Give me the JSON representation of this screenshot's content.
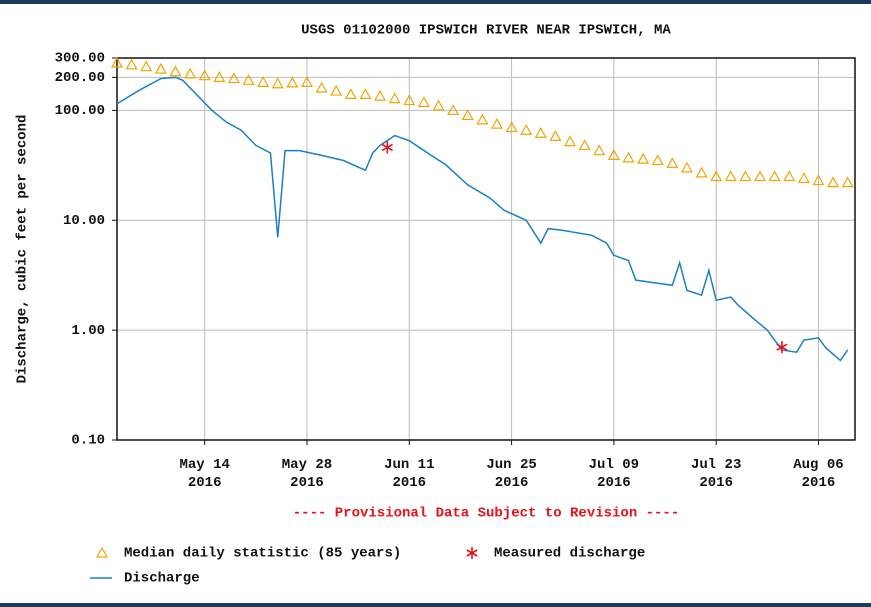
{
  "chart_data": {
    "type": "line",
    "title": "USGS 01102000 IPSWICH RIVER NEAR IPSWICH, MA",
    "ylabel": "Discharge, cubic feet per second",
    "annotation": "---- Provisional Data Subject to Revision ----",
    "log_y": true,
    "grid": true,
    "legend": "bottom",
    "xlim": [
      "2016-05-02",
      "2016-08-11"
    ],
    "xticks": [
      {
        "value": "2016-05-14",
        "label": "May 14 2016"
      },
      {
        "value": "2016-05-28",
        "label": "May 28 2016"
      },
      {
        "value": "2016-06-11",
        "label": "Jun 11 2016"
      },
      {
        "value": "2016-06-25",
        "label": "Jun 25 2016"
      },
      {
        "value": "2016-07-09",
        "label": "Jul 09 2016"
      },
      {
        "value": "2016-07-23",
        "label": "Jul 23 2016"
      },
      {
        "value": "2016-08-06",
        "label": "Aug 06 2016"
      }
    ],
    "ylim": [
      0.1,
      300
    ],
    "yticks": [
      {
        "value": 0.1,
        "label": "0.10"
      },
      {
        "value": 1,
        "label": "1.00"
      },
      {
        "value": 10,
        "label": "10.00"
      },
      {
        "value": 100,
        "label": "100.00"
      },
      {
        "value": 200,
        "label": "200.00"
      },
      {
        "value": 300,
        "label": "300.00"
      }
    ],
    "series": [
      {
        "name": "Median daily statistic (85 years)",
        "color": "#f5a300",
        "marker": "triangle",
        "x": [
          "2016-05-02",
          "2016-05-04",
          "2016-05-06",
          "2016-05-08",
          "2016-05-10",
          "2016-05-12",
          "2016-05-14",
          "2016-05-16",
          "2016-05-18",
          "2016-05-20",
          "2016-05-22",
          "2016-05-24",
          "2016-05-26",
          "2016-05-28",
          "2016-05-30",
          "2016-06-01",
          "2016-06-03",
          "2016-06-05",
          "2016-06-07",
          "2016-06-09",
          "2016-06-11",
          "2016-06-13",
          "2016-06-15",
          "2016-06-17",
          "2016-06-19",
          "2016-06-21",
          "2016-06-23",
          "2016-06-25",
          "2016-06-27",
          "2016-06-29",
          "2016-07-01",
          "2016-07-03",
          "2016-07-05",
          "2016-07-07",
          "2016-07-09",
          "2016-07-11",
          "2016-07-13",
          "2016-07-15",
          "2016-07-17",
          "2016-07-19",
          "2016-07-21",
          "2016-07-23",
          "2016-07-25",
          "2016-07-27",
          "2016-07-29",
          "2016-07-31",
          "2016-08-02",
          "2016-08-04",
          "2016-08-06",
          "2016-08-08",
          "2016-08-10"
        ],
        "values": [
          270,
          260,
          250,
          238,
          225,
          215,
          207,
          200,
          195,
          188,
          180,
          175,
          178,
          180,
          160,
          150,
          140,
          140,
          135,
          128,
          123,
          118,
          110,
          100,
          90,
          82,
          75,
          70,
          66,
          62,
          58,
          52,
          48,
          43,
          39,
          37,
          36,
          35,
          33,
          30,
          27,
          25,
          25,
          25,
          25,
          25,
          25,
          24,
          23,
          22,
          22
        ]
      },
      {
        "name": "Measured discharge",
        "color": "#e8101a",
        "marker": "star",
        "x": [
          "2016-06-08",
          "2016-08-01"
        ],
        "values": [
          46,
          0.7
        ]
      },
      {
        "name": "Discharge",
        "color": "#1b7fc4",
        "marker": "none",
        "x": [
          "2016-05-02",
          "2016-05-05",
          "2016-05-08",
          "2016-05-10",
          "2016-05-11",
          "2016-05-13",
          "2016-05-15",
          "2016-05-17",
          "2016-05-19",
          "2016-05-21",
          "2016-05-23",
          "2016-05-24",
          "2016-05-25",
          "2016-05-27",
          "2016-05-30",
          "2016-06-02",
          "2016-06-05",
          "2016-06-06",
          "2016-06-07",
          "2016-06-09",
          "2016-06-11",
          "2016-06-14",
          "2016-06-16",
          "2016-06-19",
          "2016-06-22",
          "2016-06-24",
          "2016-06-27",
          "2016-06-29",
          "2016-06-30",
          "2016-07-02",
          "2016-07-06",
          "2016-07-08",
          "2016-07-09",
          "2016-07-11",
          "2016-07-12",
          "2016-07-15",
          "2016-07-17",
          "2016-07-18",
          "2016-07-19",
          "2016-07-21",
          "2016-07-22",
          "2016-07-23",
          "2016-07-25",
          "2016-07-26",
          "2016-07-28",
          "2016-07-30",
          "2016-08-01",
          "2016-08-03",
          "2016-08-04",
          "2016-08-06",
          "2016-08-07",
          "2016-08-09",
          "2016-08-10"
        ],
        "values": [
          115,
          152,
          195,
          200,
          188,
          137,
          100,
          78,
          66,
          48,
          41,
          7.0,
          43,
          43,
          39,
          35,
          28.5,
          41,
          48,
          59,
          53,
          39,
          32,
          21,
          16,
          12.3,
          10,
          6.2,
          8.4,
          8.1,
          7.3,
          6.2,
          4.8,
          4.3,
          2.85,
          2.67,
          2.56,
          4.1,
          2.3,
          2.08,
          3.5,
          1.87,
          2.0,
          1.69,
          1.29,
          1.0,
          0.66,
          0.63,
          0.81,
          0.85,
          0.69,
          0.53,
          0.66
        ]
      }
    ]
  }
}
